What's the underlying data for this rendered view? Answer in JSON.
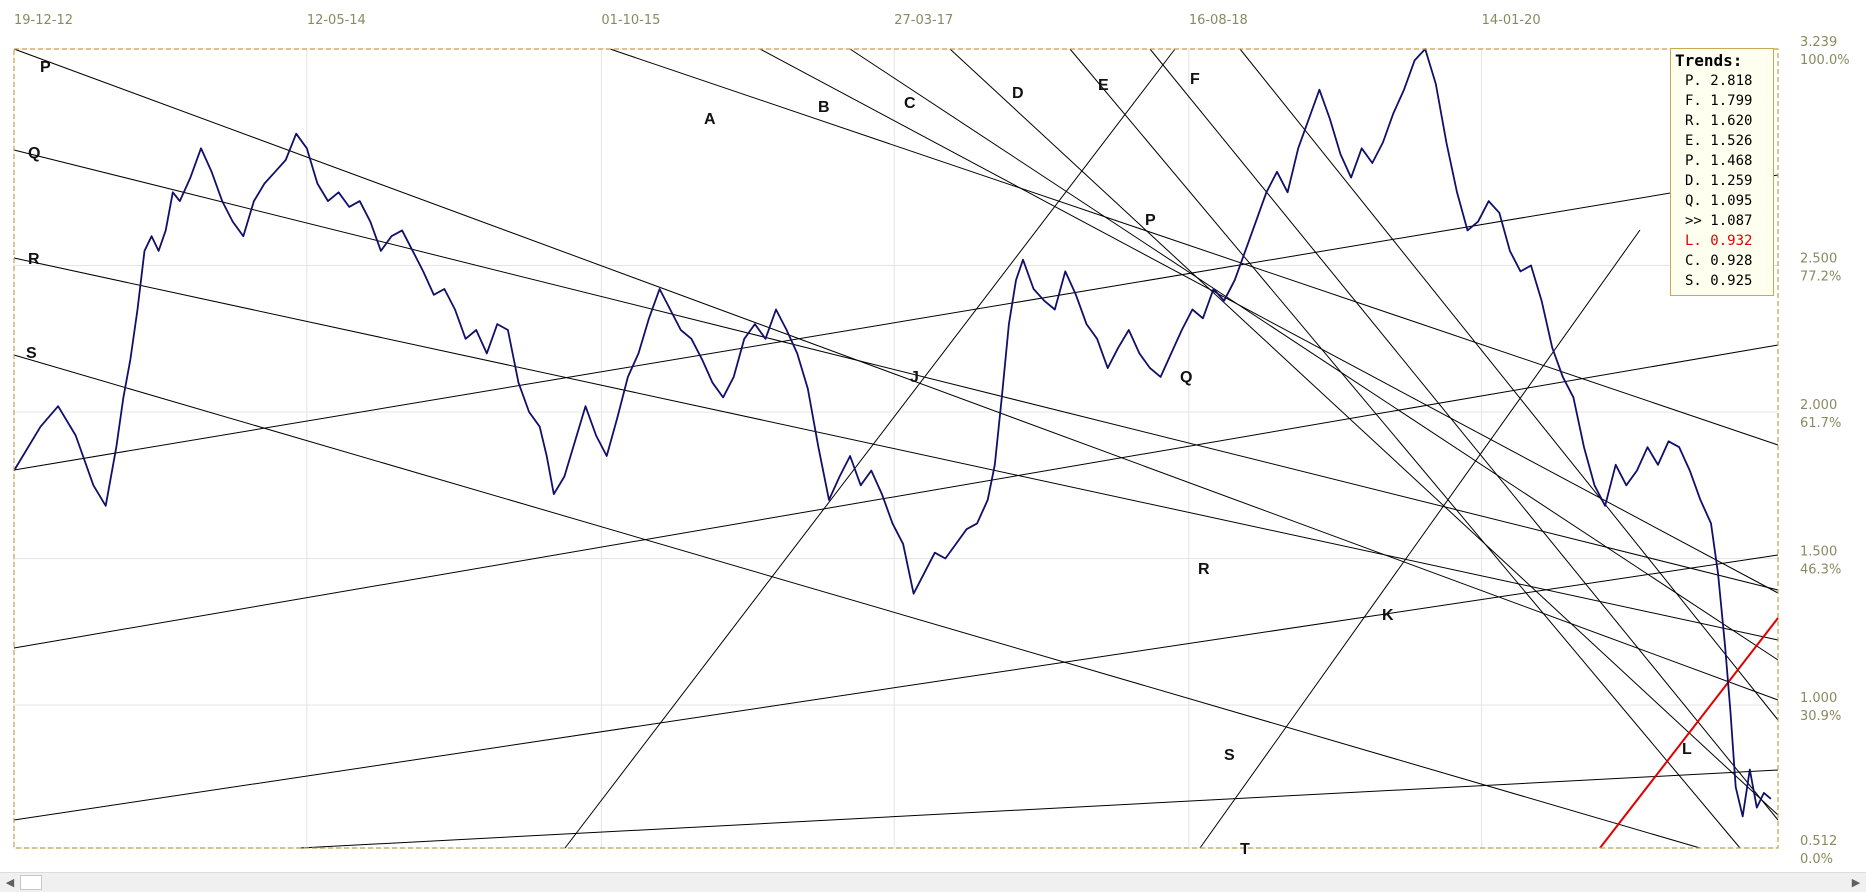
{
  "chart_data": {
    "type": "line",
    "x_tick_labels": [
      "19-12-12",
      "12-05-14",
      "01-10-15",
      "27-03-17",
      "16-08-18",
      "14-01-20"
    ],
    "y_tick_labels": [
      {
        "price": "3.239",
        "pct": "100.0%"
      },
      {
        "price": "2.500",
        "pct": "77.2%"
      },
      {
        "price": "2.000",
        "pct": "61.7%"
      },
      {
        "price": "1.500",
        "pct": "46.3%"
      },
      {
        "price": "1.000",
        "pct": "30.9%"
      },
      {
        "price": "0.512",
        "pct": "0.0%"
      }
    ],
    "y_tick_values": [
      3.239,
      2.5,
      2.0,
      1.5,
      1.0,
      0.512
    ],
    "ylim": [
      0.512,
      3.239
    ],
    "series": [
      {
        "color": "#10106a",
        "points": [
          [
            0.0,
            1.8
          ],
          [
            0.015,
            1.95
          ],
          [
            0.025,
            2.02
          ],
          [
            0.035,
            1.92
          ],
          [
            0.045,
            1.75
          ],
          [
            0.052,
            1.68
          ],
          [
            0.058,
            1.88
          ],
          [
            0.062,
            2.05
          ],
          [
            0.066,
            2.18
          ],
          [
            0.07,
            2.35
          ],
          [
            0.074,
            2.55
          ],
          [
            0.078,
            2.6
          ],
          [
            0.082,
            2.55
          ],
          [
            0.086,
            2.62
          ],
          [
            0.09,
            2.75
          ],
          [
            0.094,
            2.72
          ],
          [
            0.1,
            2.8
          ],
          [
            0.106,
            2.9
          ],
          [
            0.112,
            2.82
          ],
          [
            0.118,
            2.72
          ],
          [
            0.124,
            2.65
          ],
          [
            0.13,
            2.6
          ],
          [
            0.136,
            2.72
          ],
          [
            0.142,
            2.78
          ],
          [
            0.148,
            2.82
          ],
          [
            0.154,
            2.86
          ],
          [
            0.16,
            2.95
          ],
          [
            0.166,
            2.9
          ],
          [
            0.172,
            2.78
          ],
          [
            0.178,
            2.72
          ],
          [
            0.184,
            2.75
          ],
          [
            0.19,
            2.7
          ],
          [
            0.196,
            2.72
          ],
          [
            0.202,
            2.65
          ],
          [
            0.208,
            2.55
          ],
          [
            0.214,
            2.6
          ],
          [
            0.22,
            2.62
          ],
          [
            0.226,
            2.55
          ],
          [
            0.232,
            2.48
          ],
          [
            0.238,
            2.4
          ],
          [
            0.244,
            2.42
          ],
          [
            0.25,
            2.35
          ],
          [
            0.256,
            2.25
          ],
          [
            0.262,
            2.28
          ],
          [
            0.268,
            2.2
          ],
          [
            0.274,
            2.3
          ],
          [
            0.28,
            2.28
          ],
          [
            0.286,
            2.1
          ],
          [
            0.292,
            2.0
          ],
          [
            0.298,
            1.95
          ],
          [
            0.302,
            1.85
          ],
          [
            0.306,
            1.72
          ],
          [
            0.312,
            1.78
          ],
          [
            0.318,
            1.9
          ],
          [
            0.324,
            2.02
          ],
          [
            0.33,
            1.92
          ],
          [
            0.336,
            1.85
          ],
          [
            0.342,
            1.98
          ],
          [
            0.348,
            2.12
          ],
          [
            0.354,
            2.2
          ],
          [
            0.36,
            2.32
          ],
          [
            0.366,
            2.42
          ],
          [
            0.372,
            2.35
          ],
          [
            0.378,
            2.28
          ],
          [
            0.384,
            2.25
          ],
          [
            0.39,
            2.18
          ],
          [
            0.396,
            2.1
          ],
          [
            0.402,
            2.05
          ],
          [
            0.408,
            2.12
          ],
          [
            0.414,
            2.25
          ],
          [
            0.42,
            2.3
          ],
          [
            0.426,
            2.25
          ],
          [
            0.432,
            2.35
          ],
          [
            0.438,
            2.28
          ],
          [
            0.444,
            2.2
          ],
          [
            0.45,
            2.08
          ],
          [
            0.456,
            1.88
          ],
          [
            0.462,
            1.7
          ],
          [
            0.468,
            1.78
          ],
          [
            0.474,
            1.85
          ],
          [
            0.48,
            1.75
          ],
          [
            0.486,
            1.8
          ],
          [
            0.492,
            1.72
          ],
          [
            0.498,
            1.62
          ],
          [
            0.504,
            1.55
          ],
          [
            0.51,
            1.38
          ],
          [
            0.516,
            1.45
          ],
          [
            0.522,
            1.52
          ],
          [
            0.528,
            1.5
          ],
          [
            0.534,
            1.55
          ],
          [
            0.54,
            1.6
          ],
          [
            0.546,
            1.62
          ],
          [
            0.552,
            1.7
          ],
          [
            0.556,
            1.82
          ],
          [
            0.56,
            2.05
          ],
          [
            0.564,
            2.3
          ],
          [
            0.568,
            2.45
          ],
          [
            0.572,
            2.52
          ],
          [
            0.578,
            2.42
          ],
          [
            0.584,
            2.38
          ],
          [
            0.59,
            2.35
          ],
          [
            0.596,
            2.48
          ],
          [
            0.602,
            2.4
          ],
          [
            0.608,
            2.3
          ],
          [
            0.614,
            2.25
          ],
          [
            0.62,
            2.15
          ],
          [
            0.626,
            2.22
          ],
          [
            0.632,
            2.28
          ],
          [
            0.638,
            2.2
          ],
          [
            0.644,
            2.15
          ],
          [
            0.65,
            2.12
          ],
          [
            0.656,
            2.2
          ],
          [
            0.662,
            2.28
          ],
          [
            0.668,
            2.35
          ],
          [
            0.674,
            2.32
          ],
          [
            0.68,
            2.42
          ],
          [
            0.686,
            2.38
          ],
          [
            0.692,
            2.45
          ],
          [
            0.698,
            2.55
          ],
          [
            0.704,
            2.65
          ],
          [
            0.71,
            2.75
          ],
          [
            0.716,
            2.82
          ],
          [
            0.722,
            2.75
          ],
          [
            0.728,
            2.9
          ],
          [
            0.734,
            3.0
          ],
          [
            0.74,
            3.1
          ],
          [
            0.746,
            3.0
          ],
          [
            0.752,
            2.88
          ],
          [
            0.758,
            2.8
          ],
          [
            0.764,
            2.9
          ],
          [
            0.77,
            2.85
          ],
          [
            0.776,
            2.92
          ],
          [
            0.782,
            3.02
          ],
          [
            0.788,
            3.1
          ],
          [
            0.794,
            3.2
          ],
          [
            0.8,
            3.239
          ],
          [
            0.806,
            3.12
          ],
          [
            0.812,
            2.92
          ],
          [
            0.818,
            2.75
          ],
          [
            0.824,
            2.62
          ],
          [
            0.83,
            2.65
          ],
          [
            0.836,
            2.72
          ],
          [
            0.842,
            2.68
          ],
          [
            0.848,
            2.55
          ],
          [
            0.854,
            2.48
          ],
          [
            0.86,
            2.5
          ],
          [
            0.866,
            2.38
          ],
          [
            0.872,
            2.22
          ],
          [
            0.878,
            2.12
          ],
          [
            0.884,
            2.05
          ],
          [
            0.89,
            1.88
          ],
          [
            0.896,
            1.75
          ],
          [
            0.902,
            1.68
          ],
          [
            0.908,
            1.82
          ],
          [
            0.914,
            1.75
          ],
          [
            0.92,
            1.8
          ],
          [
            0.926,
            1.88
          ],
          [
            0.932,
            1.82
          ],
          [
            0.938,
            1.9
          ],
          [
            0.944,
            1.88
          ],
          [
            0.95,
            1.8
          ],
          [
            0.956,
            1.7
          ],
          [
            0.962,
            1.62
          ],
          [
            0.966,
            1.45
          ],
          [
            0.97,
            1.2
          ],
          [
            0.973,
            0.98
          ],
          [
            0.976,
            0.72
          ],
          [
            0.98,
            0.62
          ],
          [
            0.984,
            0.78
          ],
          [
            0.988,
            0.65
          ],
          [
            0.992,
            0.7
          ],
          [
            0.996,
            0.68
          ]
        ]
      }
    ],
    "trend_lines": [
      {
        "label": "P",
        "color": "#000000"
      },
      {
        "label": "Q",
        "color": "#000000"
      },
      {
        "label": "R",
        "color": "#000000"
      },
      {
        "label": "S",
        "color": "#000000"
      },
      {
        "label": "A",
        "color": "#000000"
      },
      {
        "label": "B",
        "color": "#000000"
      },
      {
        "label": "C",
        "color": "#000000"
      },
      {
        "label": "D",
        "color": "#000000"
      },
      {
        "label": "E",
        "color": "#000000"
      },
      {
        "label": "F",
        "color": "#000000"
      },
      {
        "label": "J",
        "color": "#000000"
      },
      {
        "label": "K",
        "color": "#000000"
      },
      {
        "label": "T",
        "color": "#000000"
      },
      {
        "label": "L",
        "color": "#e00000"
      }
    ],
    "grid": true
  },
  "trends": {
    "title": "Trends:",
    "items": [
      {
        "text": "P. 2.818",
        "color": "#000000"
      },
      {
        "text": "F. 1.799",
        "color": "#000000"
      },
      {
        "text": "R. 1.620",
        "color": "#000000"
      },
      {
        "text": "E. 1.526",
        "color": "#000000"
      },
      {
        "text": "P. 1.468",
        "color": "#000000"
      },
      {
        "text": "D. 1.259",
        "color": "#000000"
      },
      {
        "text": "Q. 1.095",
        "color": "#000000"
      },
      {
        "text": ">> 1.087",
        "color": "#000000"
      },
      {
        "text": "L. 0.932",
        "color": "#e00000"
      },
      {
        "text": "C. 0.928",
        "color": "#000000"
      },
      {
        "text": "S. 0.925",
        "color": "#000000"
      }
    ]
  },
  "scrollbar": {
    "left_arrow": "◀",
    "right_arrow": "▶"
  },
  "colors": {
    "price_line": "#10106a",
    "frame": "#c8a040",
    "grid": "#e4e4e4",
    "trend": "#000000",
    "highlight_trend": "#e00000"
  }
}
